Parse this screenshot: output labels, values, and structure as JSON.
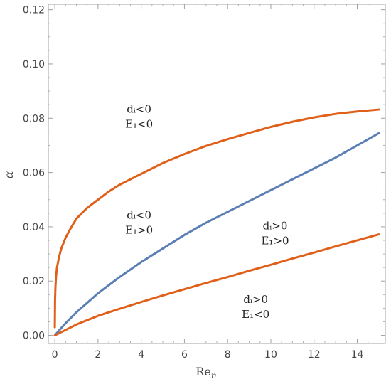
{
  "chart_data": {
    "type": "line",
    "xlabel": "Re",
    "xlabel_sub": "n",
    "ylabel": "α",
    "xlim": [
      -0.3,
      15.3
    ],
    "ylim": [
      -0.003,
      0.122
    ],
    "x_ticks": [
      0,
      2,
      4,
      6,
      8,
      10,
      12,
      14
    ],
    "x_tick_labels": [
      "0",
      "2",
      "4",
      "6",
      "8",
      "10",
      "12",
      "14"
    ],
    "y_ticks": [
      0.0,
      0.02,
      0.04,
      0.06,
      0.08,
      0.1,
      0.12
    ],
    "y_tick_labels": [
      "0.00",
      "0.02",
      "0.04",
      "0.06",
      "0.08",
      "0.10",
      "0.12"
    ],
    "grid": false,
    "series": [
      {
        "color": "#E0601A",
        "x": [
          0.0,
          0.01,
          0.03,
          0.06,
          0.1,
          0.2,
          0.3,
          0.5,
          0.7,
          1.0,
          1.5,
          2.0,
          2.5,
          3.0,
          4.0,
          5.0,
          6.0,
          7.0,
          8.0,
          9.0,
          10.0,
          11.0,
          12.0,
          13.0,
          14.0,
          15.0
        ],
        "y": [
          0.003,
          0.013,
          0.018,
          0.022,
          0.025,
          0.029,
          0.032,
          0.036,
          0.039,
          0.043,
          0.047,
          0.05,
          0.053,
          0.0555,
          0.0595,
          0.0635,
          0.0668,
          0.0698,
          0.0723,
          0.0746,
          0.0768,
          0.0787,
          0.0803,
          0.0816,
          0.0825,
          0.0832
        ]
      },
      {
        "color": "#5A7FB5",
        "x": [
          0.0,
          0.5,
          1.0,
          1.5,
          2.0,
          3.0,
          4.0,
          5.0,
          6.0,
          7.0,
          8.0,
          9.0,
          10.0,
          11.0,
          12.0,
          13.0,
          14.0,
          15.0
        ],
        "y": [
          0.0,
          0.0045,
          0.0085,
          0.012,
          0.0155,
          0.0215,
          0.027,
          0.032,
          0.037,
          0.0415,
          0.0455,
          0.0495,
          0.0535,
          0.0575,
          0.0615,
          0.0655,
          0.07,
          0.0745
        ]
      },
      {
        "color": "#E0601A",
        "x": [
          0.0,
          0.5,
          1.0,
          2.0,
          3.0,
          4.0,
          5.0,
          6.0,
          7.0,
          8.0,
          9.0,
          10.0,
          11.0,
          12.0,
          13.0,
          14.0,
          15.0
        ],
        "y": [
          0.0,
          0.002,
          0.004,
          0.0072,
          0.0098,
          0.0123,
          0.0147,
          0.017,
          0.0193,
          0.0215,
          0.0238,
          0.026,
          0.0283,
          0.0305,
          0.0328,
          0.035,
          0.0372
        ]
      }
    ],
    "annotations": [
      {
        "lines": [
          "dᵢ<0",
          "E₁<0"
        ],
        "x": 3.9,
        "y": 0.082
      },
      {
        "lines": [
          "dᵢ<0",
          "E₁>0"
        ],
        "x": 3.9,
        "y": 0.043
      },
      {
        "lines": [
          "dᵢ>0",
          "E₁>0"
        ],
        "x": 10.2,
        "y": 0.039
      },
      {
        "lines": [
          "dᵢ>0",
          "E₁<0"
        ],
        "x": 9.3,
        "y": 0.012
      }
    ]
  }
}
